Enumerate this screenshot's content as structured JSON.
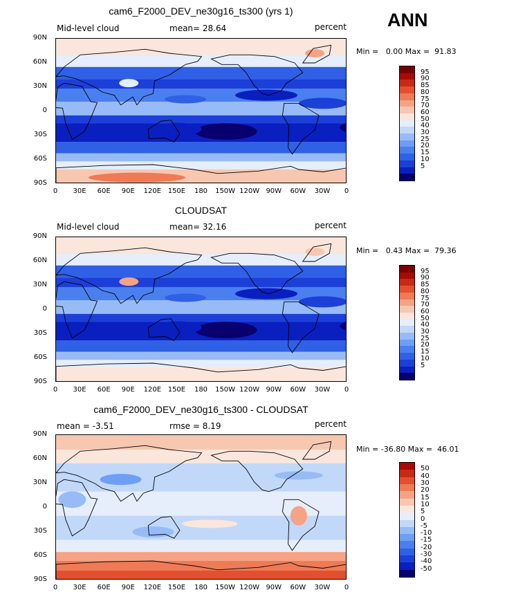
{
  "season": "ANN",
  "panels": [
    {
      "title": "cam6_F2000_DEV_ne30g16_ts300 (yrs 1)",
      "left_label": "Mid-level cloud",
      "center_label": "mean=  28.64",
      "right_label": "percent",
      "minmax": "Min =   0.00 Max =  91.83",
      "colorbar_labels": [
        "95",
        "90",
        "85",
        "80",
        "75",
        "70",
        "60",
        "50",
        "40",
        "30",
        "25",
        "20",
        "15",
        "10",
        "5"
      ]
    },
    {
      "title": "CLOUDSAT",
      "left_label": "Mid-level cloud",
      "center_label": "mean=  32.16",
      "right_label": "percent",
      "minmax": "Min =   0.43 Max =  79.36",
      "colorbar_labels": [
        "95",
        "90",
        "85",
        "80",
        "75",
        "70",
        "60",
        "50",
        "40",
        "30",
        "25",
        "20",
        "15",
        "10",
        "5"
      ]
    },
    {
      "title": "cam6_F2000_DEV_ne30g16_ts300 - CLOUDSAT",
      "left_label": "mean =  -3.51",
      "center_label": "rmse =   8.19",
      "right_label": "percent",
      "minmax": "Min = -36.80 Max =  46.01",
      "colorbar_labels": [
        "50",
        "40",
        "30",
        "20",
        "15",
        "10",
        "5",
        "0",
        "-5",
        "-10",
        "-15",
        "-20",
        "-30",
        "-40",
        "-50"
      ]
    }
  ],
  "lat_labels": [
    "90N",
    "60N",
    "30N",
    "0",
    "30S",
    "60S",
    "90S"
  ],
  "lon_labels": [
    "0",
    "30E",
    "60E",
    "90E",
    "120E",
    "150E",
    "180",
    "150W",
    "120W",
    "90W",
    "60W",
    "30W",
    "0"
  ],
  "colors": {
    "seq": [
      "#08006e",
      "#0a1fbf",
      "#1c3fd8",
      "#3060e6",
      "#4a7ff0",
      "#6e9ef5",
      "#97bbf7",
      "#c2d8f9",
      "#e6eefb",
      "#fbe6dc",
      "#f8c7b0",
      "#f5a384",
      "#ef7a56",
      "#e3502f",
      "#c82915",
      "#a50c05",
      "#7a0000"
    ],
    "div": [
      "#08006e",
      "#0a1fbf",
      "#1c3fd8",
      "#3060e6",
      "#4a7ff0",
      "#6e9ef5",
      "#97bbf7",
      "#c2d8f9",
      "#e6eefb",
      "#fbe6dc",
      "#f8c7b0",
      "#f5a384",
      "#ef7a56",
      "#e3502f",
      "#c82915",
      "#a50c05"
    ]
  }
}
